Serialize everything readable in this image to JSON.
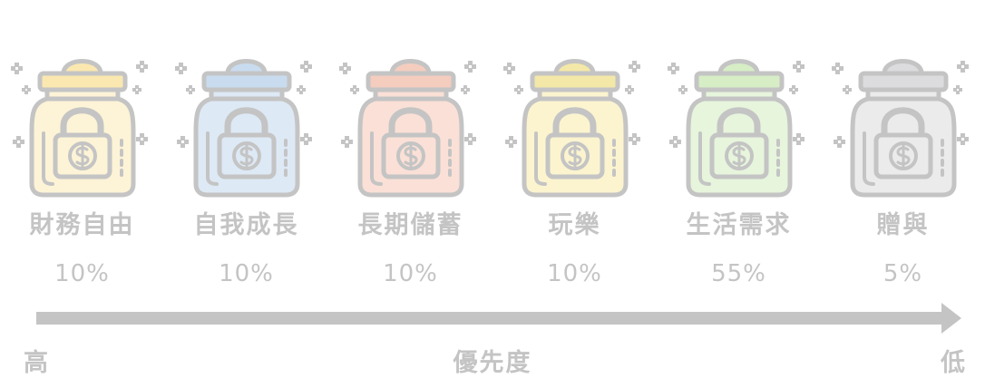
{
  "jars": [
    {
      "name": "財務自由",
      "percent": "10%",
      "color": "#fdf3d6",
      "lid_color": "#fbe8b0",
      "icon": "money-lock-jar-icon"
    },
    {
      "name": "自我成長",
      "percent": "10%",
      "color": "#dde9f5",
      "lid_color": "#c9dcef",
      "icon": "money-lock-jar-icon"
    },
    {
      "name": "長期儲蓄",
      "percent": "10%",
      "color": "#fae0d6",
      "lid_color": "#f4cdbf",
      "icon": "money-lock-jar-icon"
    },
    {
      "name": "玩樂",
      "percent": "10%",
      "color": "#fbf4cf",
      "lid_color": "#f4e8a8",
      "icon": "money-lock-jar-icon"
    },
    {
      "name": "生活需求",
      "percent": "55%",
      "color": "#e6f5dc",
      "lid_color": "#d6edc5",
      "icon": "money-lock-jar-icon"
    },
    {
      "name": "贈與",
      "percent": "5%",
      "color": "#ebebec",
      "lid_color": "#dcdcde",
      "icon": "money-lock-jar-icon"
    }
  ],
  "priority": {
    "high": "高",
    "label": "優先度",
    "low": "低"
  },
  "colors": {
    "outline": "#c4c4c4",
    "arrow": "#c4c4c4",
    "text": "#c4c4c4"
  }
}
